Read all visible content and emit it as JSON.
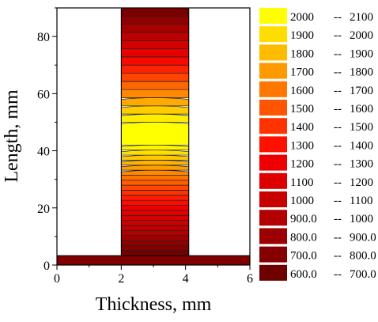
{
  "chart_data": {
    "type": "contour",
    "xlabel": "Thickness, mm",
    "ylabel": "Length, mm",
    "xlim": [
      0,
      6
    ],
    "ylim": [
      0,
      90
    ],
    "x_ticks": [
      "0",
      "2",
      "4",
      "6"
    ],
    "y_ticks": [
      "0",
      "20",
      "40",
      "60",
      "80"
    ],
    "geometry": {
      "base_plate": {
        "x": [
          0,
          6
        ],
        "y": [
          0,
          3.3
        ]
      },
      "vertical_wall": {
        "x": [
          2,
          4.1
        ],
        "y": [
          3.3,
          90
        ]
      }
    },
    "peak": {
      "x": 3.0,
      "y": 46,
      "value_range": "2000 -- 2100"
    },
    "legend": {
      "position": "right",
      "entries": [
        {
          "low": "2000",
          "high": "2100",
          "color": "#ffff00"
        },
        {
          "low": "1900",
          "high": "2000",
          "color": "#ffdd00"
        },
        {
          "low": "1800",
          "high": "1900",
          "color": "#ffbb00"
        },
        {
          "low": "1700",
          "high": "1800",
          "color": "#ff9900"
        },
        {
          "low": "1600",
          "high": "1700",
          "color": "#ff7700"
        },
        {
          "low": "1500",
          "high": "1600",
          "color": "#ff5500"
        },
        {
          "low": "1400",
          "high": "1500",
          "color": "#ff3300"
        },
        {
          "low": "1300",
          "high": "1400",
          "color": "#ff1100"
        },
        {
          "low": "1200",
          "high": "1300",
          "color": "#ee0000"
        },
        {
          "low": "1100",
          "high": "1200",
          "color": "#dd0000"
        },
        {
          "low": "1000",
          "high": "1100",
          "color": "#c80000"
        },
        {
          "low": "900.0",
          "high": "1000",
          "color": "#b30000"
        },
        {
          "low": "800.0",
          "high": "900.0",
          "color": "#9c0000"
        },
        {
          "low": "700.0",
          "high": "800.0",
          "color": "#850000"
        },
        {
          "low": "600.0",
          "high": "700.0",
          "color": "#6e0000"
        }
      ]
    },
    "colors": {
      "base": "#800000"
    }
  }
}
